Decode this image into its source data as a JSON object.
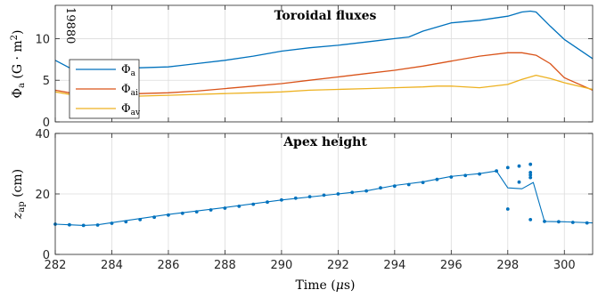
{
  "chart_data": [
    {
      "type": "line",
      "title": "Toroidal fluxes",
      "annotation": "19880",
      "ylabel": "Φa (G · m²)",
      "xlim": [
        282,
        301
      ],
      "ylim": [
        0,
        14
      ],
      "yticks": [
        0,
        5,
        10
      ],
      "xticks": [
        282,
        284,
        286,
        288,
        290,
        292,
        294,
        296,
        298,
        300
      ],
      "grid": true,
      "legend_position": "lower-left",
      "series": [
        {
          "name": "Φa",
          "color": "#0072BD",
          "x": [
            282.0,
            282.5,
            283.0,
            284.0,
            285.0,
            286.0,
            286.5,
            287.0,
            288.0,
            289.0,
            290.0,
            291.0,
            292.0,
            293.0,
            293.5,
            294.0,
            294.5,
            295.0,
            296.0,
            297.0,
            298.0,
            298.5,
            298.8,
            299.0,
            299.5,
            300.0,
            301.0
          ],
          "y": [
            7.4,
            6.5,
            6.4,
            6.5,
            6.5,
            6.6,
            6.8,
            7.0,
            7.4,
            7.9,
            8.5,
            8.9,
            9.2,
            9.6,
            9.8,
            10.0,
            10.2,
            10.9,
            11.9,
            12.2,
            12.7,
            13.2,
            13.3,
            13.2,
            11.5,
            9.9,
            7.6
          ]
        },
        {
          "name": "Φai",
          "color": "#D95319",
          "x": [
            282.0,
            282.5,
            283.0,
            284.0,
            285.0,
            286.0,
            287.0,
            288.0,
            289.0,
            290.0,
            291.0,
            292.0,
            293.0,
            294.0,
            295.0,
            296.0,
            297.0,
            298.0,
            298.5,
            299.0,
            299.5,
            300.0,
            301.0
          ],
          "y": [
            3.8,
            3.5,
            3.4,
            3.4,
            3.4,
            3.5,
            3.7,
            4.0,
            4.3,
            4.6,
            5.0,
            5.4,
            5.8,
            6.2,
            6.7,
            7.3,
            7.9,
            8.3,
            8.3,
            8.0,
            7.0,
            5.3,
            3.8
          ]
        },
        {
          "name": "Φav",
          "color": "#EDB120",
          "x": [
            282.0,
            282.5,
            283.0,
            284.0,
            285.0,
            286.0,
            287.0,
            288.0,
            289.0,
            290.0,
            291.0,
            292.0,
            293.0,
            294.0,
            295.0,
            295.5,
            296.0,
            297.0,
            298.0,
            298.5,
            299.0,
            299.5,
            300.0,
            301.0
          ],
          "y": [
            3.6,
            3.3,
            3.1,
            3.1,
            3.1,
            3.2,
            3.3,
            3.4,
            3.5,
            3.6,
            3.8,
            3.9,
            4.0,
            4.1,
            4.2,
            4.3,
            4.3,
            4.1,
            4.5,
            5.1,
            5.6,
            5.2,
            4.7,
            3.9
          ]
        }
      ]
    },
    {
      "type": "scatter",
      "title": "Apex height",
      "ylabel": "zap (cm)",
      "xlabel": "Time (μs)",
      "xlim": [
        282,
        301
      ],
      "ylim": [
        0,
        40
      ],
      "yticks": [
        0,
        20,
        40
      ],
      "xticks": [
        282,
        284,
        286,
        288,
        290,
        292,
        294,
        296,
        298,
        300
      ],
      "grid": true,
      "color": "#0072BD",
      "line": {
        "x": [
          282.0,
          282.5,
          283.0,
          283.5,
          284.0,
          286.0,
          288.0,
          290.0,
          292.0,
          293.0,
          294.0,
          295.0,
          296.0,
          297.0,
          297.6,
          298.0,
          298.5,
          298.9,
          299.3,
          300.0,
          301.0
        ],
        "y": [
          10.0,
          9.8,
          9.6,
          9.8,
          10.5,
          13.2,
          15.5,
          18.0,
          20.0,
          21.0,
          22.8,
          24.0,
          25.8,
          26.7,
          27.6,
          22.0,
          21.7,
          23.8,
          10.9,
          10.8,
          10.4
        ]
      },
      "points": {
        "x": [
          282.0,
          282.5,
          283.0,
          283.5,
          284.0,
          284.5,
          285.0,
          285.5,
          286.0,
          286.5,
          287.0,
          287.5,
          288.0,
          288.5,
          289.0,
          289.5,
          290.0,
          290.5,
          291.0,
          291.5,
          292.0,
          292.5,
          293.0,
          293.5,
          294.0,
          294.5,
          295.0,
          295.5,
          296.0,
          296.5,
          297.0,
          297.6,
          298.0,
          298.0,
          298.4,
          298.4,
          298.8,
          298.8,
          298.8,
          298.8,
          298.8,
          299.3,
          299.8,
          300.3,
          300.8
        ],
        "y": [
          10.0,
          9.8,
          9.6,
          9.7,
          10.3,
          10.8,
          11.5,
          12.3,
          13.0,
          13.6,
          14.1,
          14.7,
          15.3,
          15.9,
          16.6,
          17.3,
          18.0,
          18.6,
          19.1,
          19.6,
          20.0,
          20.5,
          21.0,
          22.0,
          22.6,
          23.1,
          23.8,
          24.8,
          25.6,
          26.1,
          26.6,
          27.6,
          28.7,
          15.0,
          29.2,
          23.9,
          29.8,
          27.1,
          26.3,
          25.4,
          11.5,
          10.9,
          10.8,
          10.6,
          10.4
        ]
      }
    }
  ]
}
